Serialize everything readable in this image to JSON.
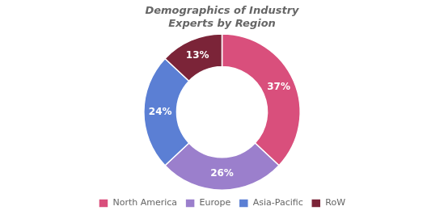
{
  "chart_data": {
    "type": "donut",
    "title": "Demographics of Industry\nExperts by Region",
    "categories": [
      "North America",
      "Europe",
      "Asia-Pacific",
      "RoW"
    ],
    "values": [
      37,
      26,
      24,
      13
    ],
    "value_labels": [
      "37%",
      "26%",
      "24%",
      "13%"
    ],
    "colors": [
      "#D94F7C",
      "#9B7FCC",
      "#5B7FD4",
      "#7B2438"
    ],
    "data_labels": true,
    "legend": "bottom"
  }
}
